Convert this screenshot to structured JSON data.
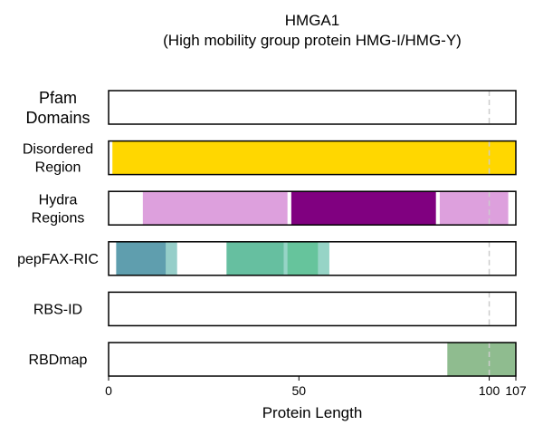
{
  "chart_data": {
    "type": "bar",
    "title_line1": "HMGA1",
    "title_line2": "(High mobility group protein HMG-I/HMG-Y)",
    "xlabel": "Protein Length",
    "xlim": [
      0,
      107
    ],
    "xticks": [
      0,
      50,
      100,
      107
    ],
    "tick_labels": [
      "0",
      "50",
      "100",
      "107"
    ],
    "marker_line_x": 100,
    "tracks": [
      {
        "label_lines": [
          "Pfam",
          "Domains"
        ],
        "segments": []
      },
      {
        "label_lines": [
          "Disordered",
          "Region"
        ],
        "segments": [
          {
            "start": 1,
            "end": 107,
            "color": "#FFD700"
          }
        ]
      },
      {
        "label_lines": [
          "Hydra",
          "Regions"
        ],
        "segments": [
          {
            "start": 9,
            "end": 47,
            "color": "#DDA0DD"
          },
          {
            "start": 48,
            "end": 86,
            "color": "#800080"
          },
          {
            "start": 87,
            "end": 105,
            "color": "#DDA0DD"
          }
        ]
      },
      {
        "label_lines": [
          "pepFAX-RIC"
        ],
        "segments": [
          {
            "start": 2,
            "end": 18,
            "color": "#96CEC9"
          },
          {
            "start": 2,
            "end": 15,
            "color": "#5F9EAE"
          },
          {
            "start": 31,
            "end": 58,
            "color": "#96D4C6"
          },
          {
            "start": 31,
            "end": 46,
            "color": "#66BFA0"
          },
          {
            "start": 47,
            "end": 55,
            "color": "#66C49C"
          }
        ]
      },
      {
        "label_lines": [
          "RBS-ID"
        ],
        "segments": []
      },
      {
        "label_lines": [
          "RBDmap"
        ],
        "segments": [
          {
            "start": 89,
            "end": 107,
            "color": "#8FBC8F"
          }
        ]
      }
    ]
  }
}
